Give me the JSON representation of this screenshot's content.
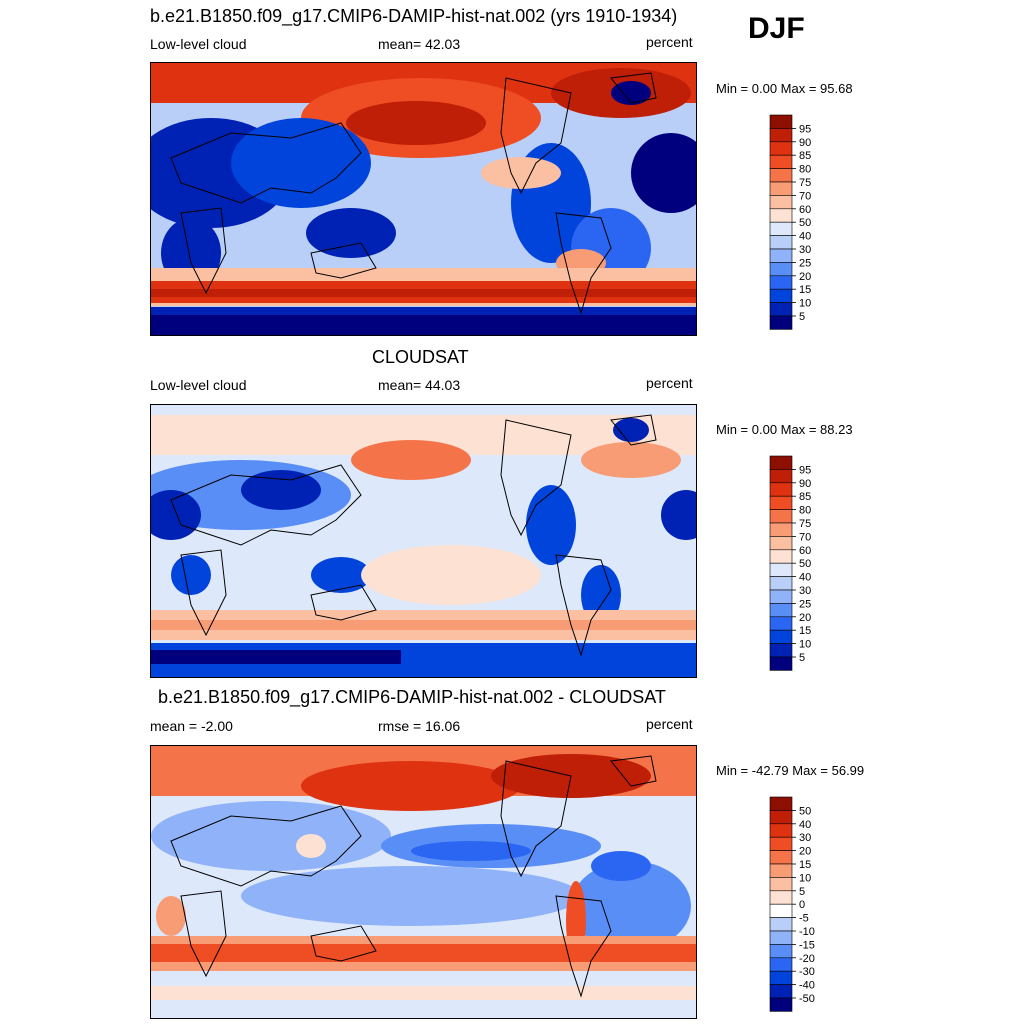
{
  "season": "DJF",
  "palette_full": [
    "#00007f",
    "#0022b4",
    "#0044dc",
    "#2a66f2",
    "#5a8ef7",
    "#8fb2f9",
    "#b9cff8",
    "#dde9fb",
    "#ffffff",
    "#fde1d2",
    "#fbbfa1",
    "#f89c76",
    "#f47349",
    "#ef4d24",
    "#df3211",
    "#bf1e07",
    "#8c0f00"
  ],
  "panels": [
    {
      "title": "b.e21.B1850.f09_g17.CMIP6-DAMIP-hist-nat.002 (yrs 1910-1934)",
      "left_label": "Low-level cloud",
      "center_label": "mean=  42.03",
      "units": "percent",
      "minmax": "Min =    0.00 Max =  95.68",
      "colorbar_labels": [
        "95",
        "90",
        "85",
        "80",
        "75",
        "70",
        "60",
        "50",
        "40",
        "30",
        "25",
        "20",
        "15",
        "10",
        "5"
      ]
    },
    {
      "title": "CLOUDSAT",
      "left_label": "Low-level cloud",
      "center_label": "mean=  44.03",
      "units": "percent",
      "minmax": "Min =    0.00 Max =  88.23",
      "colorbar_labels": [
        "95",
        "90",
        "85",
        "80",
        "75",
        "70",
        "60",
        "50",
        "40",
        "30",
        "25",
        "20",
        "15",
        "10",
        "5"
      ]
    },
    {
      "title": "b.e21.B1850.f09_g17.CMIP6-DAMIP-hist-nat.002 - CLOUDSAT",
      "left_label": "mean =  -2.00",
      "center_label": "rmse =  16.06",
      "units": "percent",
      "minmax": "Min = -42.79 Max =  56.99",
      "colorbar_labels": [
        "50",
        "40",
        "30",
        "20",
        "15",
        "10",
        "5",
        "0",
        "-5",
        "-10",
        "-15",
        "-20",
        "-30",
        "-40",
        "-50"
      ]
    }
  ]
}
